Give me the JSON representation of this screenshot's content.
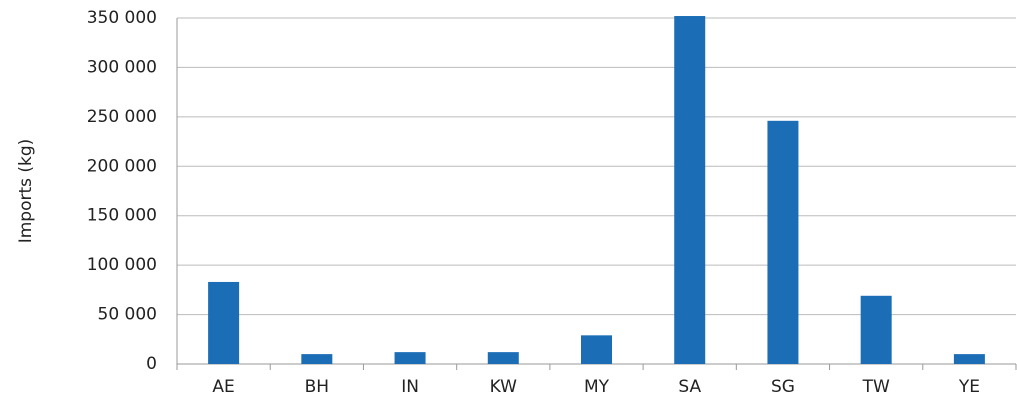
{
  "chart_data": {
    "type": "bar",
    "y_label": "Imports (kg)",
    "categories": [
      "AE",
      "BH",
      "IN",
      "KW",
      "MY",
      "SA",
      "SG",
      "TW",
      "YE"
    ],
    "values": [
      83000,
      10000,
      12000,
      12000,
      29000,
      352000,
      246000,
      69000,
      10000
    ],
    "color": "#1b6db5",
    "ylim": [
      0,
      350000
    ],
    "yticks": [
      0,
      {
        "value": 50000,
        "label": "50 000"
      },
      {
        "value": 100000,
        "label": "100 000"
      },
      {
        "value": 150000,
        "label": "150 000"
      },
      {
        "value": 200000,
        "label": "200 000"
      },
      {
        "value": 250000,
        "label": "250 000"
      },
      {
        "value": 300000,
        "label": "300 000"
      },
      {
        "value": 350000,
        "label": "350 000"
      }
    ],
    "grid": true
  }
}
